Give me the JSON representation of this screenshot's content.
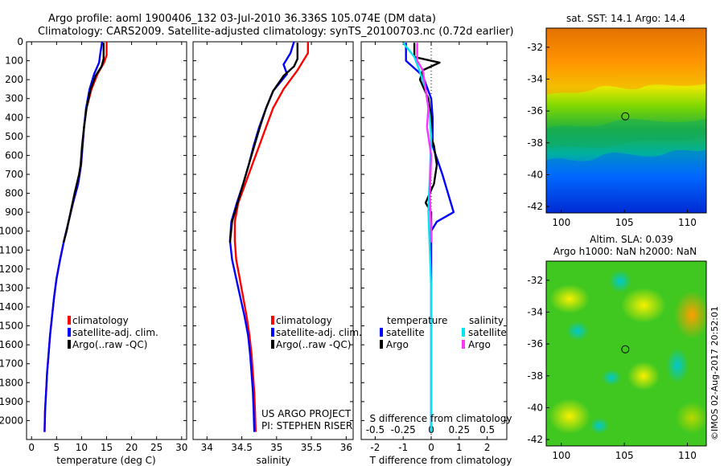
{
  "header": {
    "line1": "Argo profile: aoml 1900406_132 03-Jul-2010 36.336S 105.074E (DM data)",
    "line2": "Climatology: CARS2009. Satellite-adjusted climatology: synTS_20100703.nc (0.72d earlier)"
  },
  "watermark": "©IMOS 02-Aug-2017 20:52:01",
  "colors": {
    "climatology": "#ff0000",
    "satellite": "#0000ff",
    "argo": "#000000",
    "sal_satellite": "#00e5ee",
    "sal_argo": "#ff33ff"
  },
  "chart_data": [
    {
      "type": "line",
      "id": "temperature",
      "xlabel": "temperature (deg C)",
      "ylabel": "",
      "xlim": [
        -1,
        31
      ],
      "ylim": [
        2100,
        0
      ],
      "xticks": [
        "0",
        "5",
        "10",
        "15",
        "20",
        "25",
        "30"
      ],
      "yticks": [
        "0",
        "100",
        "200",
        "300",
        "400",
        "500",
        "600",
        "700",
        "800",
        "900",
        "1000",
        "1100",
        "1200",
        "1300",
        "1400",
        "1500",
        "1600",
        "1700",
        "1800",
        "1900",
        "2000"
      ],
      "legend": [
        "climatology",
        "satellite-adj. clim.",
        "Argo(..raw -QC)"
      ],
      "series": [
        {
          "name": "climatology",
          "color": "#ff0000",
          "points": [
            [
              15.0,
              0
            ],
            [
              15.0,
              70
            ],
            [
              14.5,
              110
            ],
            [
              13.2,
              170
            ],
            [
              12.0,
              250
            ],
            [
              11.0,
              350
            ],
            [
              10.5,
              450
            ],
            [
              10.2,
              550
            ],
            [
              9.9,
              650
            ],
            [
              9.3,
              750
            ],
            [
              8.3,
              850
            ],
            [
              7.4,
              950
            ],
            [
              6.5,
              1050
            ],
            [
              5.7,
              1150
            ],
            [
              5.0,
              1250
            ],
            [
              4.5,
              1350
            ],
            [
              4.1,
              1450
            ],
            [
              3.7,
              1550
            ],
            [
              3.4,
              1650
            ],
            [
              3.1,
              1750
            ],
            [
              2.9,
              1850
            ],
            [
              2.7,
              1950
            ],
            [
              2.6,
              2060
            ]
          ]
        },
        {
          "name": "satellite-adj. clim.",
          "color": "#0000ff",
          "points": [
            [
              14.1,
              0
            ],
            [
              13.7,
              70
            ],
            [
              13.5,
              110
            ],
            [
              12.5,
              170
            ],
            [
              11.6,
              250
            ],
            [
              10.9,
              350
            ],
            [
              10.5,
              450
            ],
            [
              10.2,
              550
            ],
            [
              9.9,
              650
            ],
            [
              9.3,
              750
            ],
            [
              8.3,
              850
            ],
            [
              7.4,
              950
            ],
            [
              6.5,
              1050
            ],
            [
              5.7,
              1150
            ],
            [
              5.0,
              1250
            ],
            [
              4.5,
              1350
            ],
            [
              4.1,
              1450
            ],
            [
              3.7,
              1550
            ],
            [
              3.4,
              1650
            ],
            [
              3.1,
              1750
            ],
            [
              2.9,
              1850
            ],
            [
              2.7,
              1950
            ],
            [
              2.6,
              2060
            ]
          ]
        },
        {
          "name": "Argo(..raw -QC)",
          "color": "#000000",
          "points": [
            [
              14.4,
              5
            ],
            [
              14.4,
              90
            ],
            [
              14.0,
              130
            ],
            [
              12.8,
              180
            ],
            [
              11.8,
              250
            ],
            [
              11.0,
              350
            ],
            [
              10.5,
              450
            ],
            [
              10.1,
              550
            ],
            [
              9.8,
              650
            ],
            [
              9.5,
              700
            ],
            [
              8.6,
              800
            ],
            [
              7.8,
              900
            ],
            [
              7.0,
              1000
            ],
            [
              6.4,
              1060
            ]
          ]
        }
      ]
    },
    {
      "type": "line",
      "id": "salinity",
      "xlabel": "salinity",
      "ylabel": "",
      "xlim": [
        33.8,
        36.1
      ],
      "ylim": [
        2100,
        0
      ],
      "xticks": [
        "34",
        "34.5",
        "35",
        "35.5",
        "36"
      ],
      "legend": [
        "climatology",
        "satellite-adj. clim.",
        "Argo(..raw -QC)"
      ],
      "annotation": [
        "US ARGO PROJECT",
        "PI: STEPHEN RISER"
      ],
      "series": [
        {
          "name": "climatology",
          "color": "#ff0000",
          "points": [
            [
              35.45,
              0
            ],
            [
              35.45,
              60
            ],
            [
              35.3,
              150
            ],
            [
              35.1,
              250
            ],
            [
              34.95,
              350
            ],
            [
              34.85,
              450
            ],
            [
              34.75,
              550
            ],
            [
              34.65,
              650
            ],
            [
              34.55,
              750
            ],
            [
              34.45,
              850
            ],
            [
              34.4,
              950
            ],
            [
              34.4,
              1050
            ],
            [
              34.42,
              1150
            ],
            [
              34.47,
              1250
            ],
            [
              34.52,
              1350
            ],
            [
              34.57,
              1450
            ],
            [
              34.61,
              1550
            ],
            [
              34.64,
              1650
            ],
            [
              34.66,
              1750
            ],
            [
              34.68,
              1850
            ],
            [
              34.69,
              1950
            ],
            [
              34.7,
              2060
            ]
          ]
        },
        {
          "name": "satellite-adj. clim.",
          "color": "#0000ff",
          "points": [
            [
              35.25,
              0
            ],
            [
              35.2,
              60
            ],
            [
              35.1,
              120
            ],
            [
              35.15,
              170
            ],
            [
              34.95,
              260
            ],
            [
              34.85,
              350
            ],
            [
              34.75,
              450
            ],
            [
              34.67,
              550
            ],
            [
              34.6,
              650
            ],
            [
              34.52,
              750
            ],
            [
              34.43,
              850
            ],
            [
              34.35,
              950
            ],
            [
              34.33,
              1050
            ],
            [
              34.36,
              1150
            ],
            [
              34.42,
              1250
            ],
            [
              34.48,
              1350
            ],
            [
              34.54,
              1450
            ],
            [
              34.59,
              1550
            ],
            [
              34.62,
              1650
            ],
            [
              34.64,
              1750
            ],
            [
              34.66,
              1850
            ],
            [
              34.67,
              1950
            ],
            [
              34.68,
              2060
            ]
          ]
        },
        {
          "name": "Argo(..raw -QC)",
          "color": "#000000",
          "points": [
            [
              35.3,
              5
            ],
            [
              35.3,
              90
            ],
            [
              35.25,
              130
            ],
            [
              35.1,
              180
            ],
            [
              34.95,
              260
            ],
            [
              34.85,
              350
            ],
            [
              34.76,
              450
            ],
            [
              34.68,
              550
            ],
            [
              34.6,
              650
            ],
            [
              34.52,
              750
            ],
            [
              34.44,
              850
            ],
            [
              34.36,
              950
            ],
            [
              34.33,
              1060
            ]
          ]
        }
      ]
    },
    {
      "type": "line",
      "id": "difference",
      "xlabel": "T difference from climatology",
      "top_label": "S difference from climatology",
      "xlim": [
        -2.5,
        2.7
      ],
      "ylim": [
        2100,
        0
      ],
      "xticks": [
        "-2",
        "-1",
        "0",
        "1",
        "2"
      ],
      "top_ticks": [
        "-0.5",
        "-0.25",
        "0",
        "0.25",
        "0.5"
      ],
      "legend_headers": [
        "temperature",
        "salinity"
      ],
      "legend": [
        "satellite",
        "Argo",
        "satellite",
        "Argo"
      ],
      "series": [
        {
          "name": "satellite",
          "color": "#0000ff",
          "points": [
            [
              -0.9,
              5
            ],
            [
              -0.9,
              100
            ],
            [
              -0.3,
              180
            ],
            [
              0.0,
              300
            ],
            [
              0.05,
              400
            ],
            [
              0.05,
              550
            ],
            [
              0.4,
              700
            ],
            [
              0.6,
              800
            ],
            [
              0.8,
              900
            ],
            [
              0.2,
              950
            ],
            [
              0.0,
              1000
            ],
            [
              0.0,
              1300
            ],
            [
              0.0,
              2060
            ]
          ]
        },
        {
          "name": "Argo",
          "color": "#000000",
          "points": [
            [
              -0.6,
              5
            ],
            [
              -0.6,
              80
            ],
            [
              0.3,
              110
            ],
            [
              -0.3,
              150
            ],
            [
              -0.4,
              200
            ],
            [
              -0.1,
              300
            ],
            [
              0.0,
              400
            ],
            [
              0.0,
              500
            ],
            [
              0.1,
              550
            ],
            [
              0.2,
              650
            ],
            [
              0.1,
              750
            ],
            [
              -0.2,
              850
            ],
            [
              0.0,
              900
            ],
            [
              0.0,
              1060
            ]
          ]
        },
        {
          "name": "satellite",
          "color": "#00e5ee",
          "points": [
            [
              -1.0,
              5
            ],
            [
              -0.6,
              80
            ],
            [
              -0.4,
              160
            ],
            [
              -0.2,
              250
            ],
            [
              -0.05,
              400
            ],
            [
              0.0,
              500
            ],
            [
              -0.05,
              700
            ],
            [
              -0.1,
              900
            ],
            [
              -0.05,
              1100
            ],
            [
              0.0,
              1300
            ],
            [
              0.0,
              2060
            ]
          ]
        },
        {
          "name": "Argo",
          "color": "#ff33ff",
          "points": [
            [
              -0.5,
              5
            ],
            [
              -0.5,
              100
            ],
            [
              -0.3,
              150
            ],
            [
              -0.2,
              250
            ],
            [
              -0.1,
              350
            ],
            [
              -0.15,
              450
            ],
            [
              0.0,
              600
            ],
            [
              -0.05,
              800
            ],
            [
              0.0,
              1000
            ],
            [
              0.0,
              1060
            ]
          ]
        }
      ]
    },
    {
      "type": "heatmap",
      "id": "sst-map",
      "title": "sat. SST: 14.1  Argo: 14.4",
      "xticks": [
        "100",
        "105",
        "110"
      ],
      "yticks": [
        "-32",
        "-34",
        "-36",
        "-38",
        "-40",
        "-42"
      ],
      "xlim": [
        98.8,
        111.5
      ],
      "ylim": [
        -42.4,
        -30.8
      ],
      "marker": [
        105.074,
        -36.336
      ]
    },
    {
      "type": "heatmap",
      "id": "sla-map",
      "title": "Altim. SLA: 0.039",
      "subtitle": "Argo h1000: NaN h2000: NaN",
      "xticks": [
        "100",
        "105",
        "110"
      ],
      "yticks": [
        "-32",
        "-34",
        "-36",
        "-38",
        "-40",
        "-42"
      ],
      "xlim": [
        98.8,
        111.5
      ],
      "ylim": [
        -42.4,
        -30.8
      ],
      "marker": [
        105.074,
        -36.336
      ]
    }
  ]
}
